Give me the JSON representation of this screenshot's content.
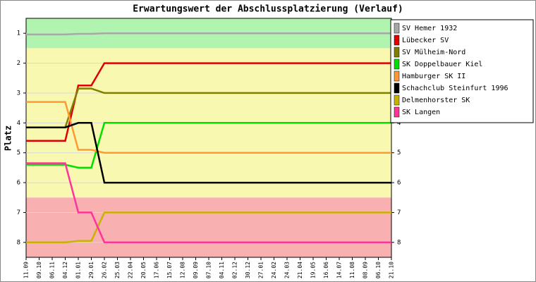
{
  "chart_data": {
    "type": "line",
    "title": "Erwartungswert der Abschlussplatzierung (Verlauf)",
    "y_label": "Platz",
    "y_inverted": true,
    "ylim": [
      0.5,
      8.5
    ],
    "yticks": [
      1,
      2,
      3,
      4,
      5,
      6,
      7,
      8
    ],
    "bands": [
      {
        "from": 0.5,
        "to": 1.5,
        "color": "#b0f4b0"
      },
      {
        "from": 1.5,
        "to": 6.5,
        "color": "#f8f8b0"
      },
      {
        "from": 6.5,
        "to": 8.5,
        "color": "#f8b0b0"
      }
    ],
    "categories": [
      "11.09",
      "09.10",
      "06.11",
      "04.12",
      "01.01",
      "29.01",
      "26.02",
      "25.03",
      "22.04",
      "20.05",
      "17.06",
      "15.07",
      "12.08",
      "09.09",
      "07.10",
      "04.11",
      "02.12",
      "30.12",
      "27.01",
      "24.02",
      "24.03",
      "21.04",
      "19.05",
      "16.06",
      "14.07",
      "11.08",
      "08.09",
      "06.10",
      "21.10"
    ],
    "series": [
      {
        "name": "SV Hemer 1932",
        "color": "#a8a8a8",
        "values": [
          1.04,
          1.04,
          1.04,
          1.04,
          1.02,
          1.02,
          1.0,
          1.0,
          1.0,
          1.0,
          1.0,
          1.0,
          1.0,
          1.0,
          1.0,
          1.0,
          1.0,
          1.0,
          1.0,
          1.0,
          1.0,
          1.0,
          1.0,
          1.0,
          1.0,
          1.0,
          1.0,
          1.0,
          1.0
        ]
      },
      {
        "name": "Lübecker SV",
        "color": "#e00000",
        "values": [
          4.6,
          4.6,
          4.6,
          4.6,
          2.75,
          2.75,
          2.0,
          2.0,
          2.0,
          2.0,
          2.0,
          2.0,
          2.0,
          2.0,
          2.0,
          2.0,
          2.0,
          2.0,
          2.0,
          2.0,
          2.0,
          2.0,
          2.0,
          2.0,
          2.0,
          2.0,
          2.0,
          2.0,
          2.0
        ]
      },
      {
        "name": "SV Mülheim-Nord",
        "color": "#808000",
        "values": [
          4.15,
          4.15,
          4.15,
          4.15,
          2.85,
          2.85,
          3.0,
          3.0,
          3.0,
          3.0,
          3.0,
          3.0,
          3.0,
          3.0,
          3.0,
          3.0,
          3.0,
          3.0,
          3.0,
          3.0,
          3.0,
          3.0,
          3.0,
          3.0,
          3.0,
          3.0,
          3.0,
          3.0,
          3.0
        ]
      },
      {
        "name": "SK Doppelbauer Kiel",
        "color": "#00e000",
        "values": [
          5.4,
          5.4,
          5.4,
          5.4,
          5.5,
          5.5,
          4.0,
          4.0,
          4.0,
          4.0,
          4.0,
          4.0,
          4.0,
          4.0,
          4.0,
          4.0,
          4.0,
          4.0,
          4.0,
          4.0,
          4.0,
          4.0,
          4.0,
          4.0,
          4.0,
          4.0,
          4.0,
          4.0,
          4.0
        ]
      },
      {
        "name": "Hamburger SK II",
        "color": "#ff9933",
        "values": [
          3.3,
          3.3,
          3.3,
          3.3,
          4.9,
          4.9,
          5.0,
          5.0,
          5.0,
          5.0,
          5.0,
          5.0,
          5.0,
          5.0,
          5.0,
          5.0,
          5.0,
          5.0,
          5.0,
          5.0,
          5.0,
          5.0,
          5.0,
          5.0,
          5.0,
          5.0,
          5.0,
          5.0,
          5.0
        ]
      },
      {
        "name": "Schachclub Steinfurt 1996",
        "color": "#000000",
        "values": [
          4.15,
          4.15,
          4.15,
          4.15,
          4.0,
          4.0,
          6.0,
          6.0,
          6.0,
          6.0,
          6.0,
          6.0,
          6.0,
          6.0,
          6.0,
          6.0,
          6.0,
          6.0,
          6.0,
          6.0,
          6.0,
          6.0,
          6.0,
          6.0,
          6.0,
          6.0,
          6.0,
          6.0,
          6.0
        ]
      },
      {
        "name": "Delmenhorster SK",
        "color": "#c8b400",
        "values": [
          8.0,
          8.0,
          8.0,
          8.0,
          7.95,
          7.95,
          7.0,
          7.0,
          7.0,
          7.0,
          7.0,
          7.0,
          7.0,
          7.0,
          7.0,
          7.0,
          7.0,
          7.0,
          7.0,
          7.0,
          7.0,
          7.0,
          7.0,
          7.0,
          7.0,
          7.0,
          7.0,
          7.0,
          7.0
        ]
      },
      {
        "name": "SK Langen",
        "color": "#ff3399",
        "values": [
          5.35,
          5.35,
          5.35,
          5.35,
          7.0,
          7.0,
          8.0,
          8.0,
          8.0,
          8.0,
          8.0,
          8.0,
          8.0,
          8.0,
          8.0,
          8.0,
          8.0,
          8.0,
          8.0,
          8.0,
          8.0,
          8.0,
          8.0,
          8.0,
          8.0,
          8.0,
          8.0,
          8.0,
          8.0
        ]
      }
    ]
  }
}
